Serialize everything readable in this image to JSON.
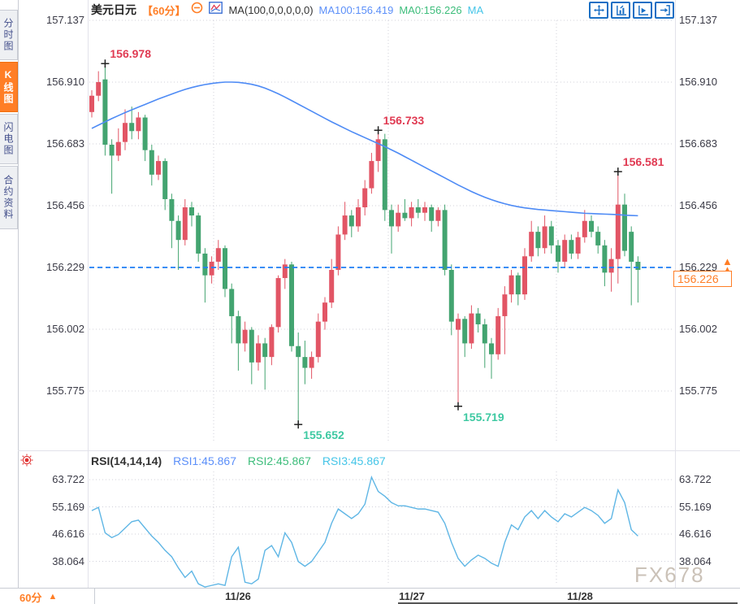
{
  "header": {
    "symbol": "美元日元",
    "timeframe": "【60分】",
    "ma_settings": "MA(100,0,0,0,0,0)",
    "ma100_label": "MA100:156.419",
    "ma0_label": "MA0:156.226",
    "ma_extra_label": "MA",
    "toolbar_icons": [
      "crosshair-move-icon",
      "chart-zoom-in-icon",
      "chart-play-icon",
      "exit-chart-icon"
    ]
  },
  "sidebar": {
    "tabs": [
      {
        "label": "分时图",
        "active": false
      },
      {
        "label": "K线图",
        "active": true
      },
      {
        "label": "闪电图",
        "active": false
      },
      {
        "label": "合约资料",
        "active": false
      }
    ]
  },
  "current_price": {
    "value": "156.226",
    "line_price": 156.229,
    "arrow": "▲"
  },
  "rsi_header": {
    "title": "RSI(14,14,14)",
    "rsi1": "RSI1:45.867",
    "rsi2": "RSI2:45.867",
    "rsi3": "RSI3:45.867"
  },
  "footer": {
    "timeframe_label": "60分",
    "arrow": "▲"
  },
  "watermark": "FX678",
  "colors": {
    "up": "#e25565",
    "down": "#43a470",
    "ma_line": "#4e8bf5",
    "dashed_line": "#1f7ff5",
    "rsi_line": "#5fb6e5",
    "accent": "#ff7e26",
    "high_text": "#e03a52",
    "low_text": "#3ec9a2",
    "grid": "#d0d0da",
    "icon_blue": "#1a6fc4",
    "sun_red": "#e03030"
  },
  "chart_data": {
    "type": "candlestick",
    "symbol": "美元日元",
    "interval": "60分",
    "price_axis_labels": [
      157.137,
      156.91,
      156.683,
      156.456,
      156.229,
      156.002,
      155.775
    ],
    "rsi_axis_labels": [
      63.722,
      55.169,
      46.616,
      38.064
    ],
    "x_axis_labels": [
      "11/26",
      "11/27",
      "11/28"
    ],
    "legend": {
      "ma100_value": 156.419,
      "ma0_value": 156.226,
      "rsi_values": [
        45.867,
        45.867,
        45.867
      ]
    },
    "candles": [
      [
        156.8,
        156.88,
        156.78,
        156.86
      ],
      [
        156.86,
        156.95,
        156.84,
        156.91
      ],
      [
        156.92,
        156.978,
        156.64,
        156.68
      ],
      [
        156.68,
        156.7,
        156.5,
        156.64
      ],
      [
        156.64,
        156.74,
        156.62,
        156.69
      ],
      [
        156.69,
        156.81,
        156.66,
        156.76
      ],
      [
        156.76,
        156.82,
        156.7,
        156.73
      ],
      [
        156.73,
        156.8,
        156.7,
        156.78
      ],
      [
        156.78,
        156.79,
        156.62,
        156.66
      ],
      [
        156.66,
        156.68,
        156.53,
        156.57
      ],
      [
        156.57,
        156.64,
        156.55,
        156.62
      ],
      [
        156.62,
        156.63,
        156.44,
        156.48
      ],
      [
        156.48,
        156.5,
        156.3,
        156.4
      ],
      [
        156.4,
        156.42,
        156.22,
        156.33
      ],
      [
        156.33,
        156.48,
        156.31,
        156.45
      ],
      [
        156.45,
        156.47,
        156.38,
        156.42
      ],
      [
        156.42,
        156.43,
        156.25,
        156.28
      ],
      [
        156.28,
        156.3,
        156.1,
        156.2
      ],
      [
        156.2,
        156.27,
        156.17,
        156.25
      ],
      [
        156.25,
        156.33,
        156.22,
        156.3
      ],
      [
        156.3,
        156.31,
        156.12,
        156.15
      ],
      [
        156.15,
        156.17,
        155.95,
        156.05
      ],
      [
        156.05,
        156.07,
        155.85,
        155.95
      ],
      [
        155.95,
        156.03,
        155.92,
        156.0
      ],
      [
        156.0,
        156.01,
        155.8,
        155.88
      ],
      [
        155.88,
        155.98,
        155.85,
        155.95
      ],
      [
        155.95,
        155.97,
        155.78,
        155.9
      ],
      [
        155.9,
        156.02,
        155.87,
        156.01
      ],
      [
        156.01,
        156.2,
        155.99,
        156.19
      ],
      [
        156.19,
        156.26,
        156.15,
        156.24
      ],
      [
        156.24,
        156.25,
        155.92,
        155.94
      ],
      [
        155.94,
        155.99,
        155.652,
        155.9
      ],
      [
        155.9,
        155.96,
        155.8,
        155.86
      ],
      [
        155.86,
        155.92,
        155.82,
        155.9
      ],
      [
        155.9,
        156.06,
        155.88,
        156.03
      ],
      [
        156.03,
        156.12,
        156.0,
        156.1
      ],
      [
        156.1,
        156.26,
        156.08,
        156.22
      ],
      [
        156.22,
        156.38,
        156.2,
        156.35
      ],
      [
        156.35,
        156.47,
        156.33,
        156.42
      ],
      [
        156.42,
        156.44,
        156.34,
        156.38
      ],
      [
        156.38,
        156.48,
        156.36,
        156.45
      ],
      [
        156.45,
        156.55,
        156.42,
        156.52
      ],
      [
        156.52,
        156.65,
        156.5,
        156.62
      ],
      [
        156.62,
        156.733,
        156.58,
        156.7
      ],
      [
        156.7,
        156.72,
        156.4,
        156.44
      ],
      [
        156.44,
        156.46,
        156.28,
        156.38
      ],
      [
        156.38,
        156.46,
        156.36,
        156.43
      ],
      [
        156.43,
        156.48,
        156.4,
        156.41
      ],
      [
        156.41,
        156.47,
        156.38,
        156.45
      ],
      [
        156.45,
        156.48,
        156.41,
        156.43
      ],
      [
        156.43,
        156.47,
        156.4,
        156.45
      ],
      [
        156.45,
        156.46,
        156.36,
        156.4
      ],
      [
        156.4,
        156.45,
        156.38,
        156.44
      ],
      [
        156.44,
        156.46,
        156.2,
        156.22
      ],
      [
        156.22,
        156.24,
        155.98,
        156.03
      ],
      [
        156.0,
        156.06,
        155.719,
        156.04
      ],
      [
        156.04,
        156.05,
        155.9,
        155.95
      ],
      [
        155.95,
        156.09,
        155.93,
        156.06
      ],
      [
        156.06,
        156.08,
        155.99,
        156.02
      ],
      [
        156.02,
        156.04,
        155.86,
        155.95
      ],
      [
        155.95,
        155.97,
        155.82,
        155.91
      ],
      [
        155.91,
        156.08,
        155.89,
        156.05
      ],
      [
        156.05,
        156.16,
        155.91,
        156.13
      ],
      [
        156.13,
        156.22,
        156.1,
        156.2
      ],
      [
        156.2,
        156.21,
        156.09,
        156.13
      ],
      [
        156.13,
        156.3,
        156.11,
        156.27
      ],
      [
        156.27,
        156.4,
        156.25,
        156.36
      ],
      [
        156.36,
        156.38,
        156.27,
        156.3
      ],
      [
        156.3,
        156.42,
        156.28,
        156.38
      ],
      [
        156.38,
        156.4,
        156.28,
        156.31
      ],
      [
        156.31,
        156.33,
        156.21,
        156.25
      ],
      [
        156.25,
        156.35,
        156.23,
        156.33
      ],
      [
        156.33,
        156.35,
        156.26,
        156.28
      ],
      [
        156.28,
        156.36,
        156.26,
        156.34
      ],
      [
        156.34,
        156.44,
        156.32,
        156.4
      ],
      [
        156.4,
        156.42,
        156.34,
        156.36
      ],
      [
        156.36,
        156.38,
        156.28,
        156.31
      ],
      [
        156.31,
        156.33,
        156.16,
        156.21
      ],
      [
        156.21,
        156.3,
        156.14,
        156.26
      ],
      [
        156.26,
        156.581,
        156.17,
        156.46
      ],
      [
        156.46,
        156.5,
        156.27,
        156.29
      ],
      [
        156.36,
        156.38,
        156.09,
        156.25
      ],
      [
        156.25,
        156.27,
        156.1,
        156.22
      ]
    ],
    "ma100": [
      156.74,
      156.752,
      156.764,
      156.776,
      156.787,
      156.798,
      156.808,
      156.818,
      156.828,
      156.838,
      156.848,
      156.857,
      156.866,
      156.875,
      156.883,
      156.89,
      156.896,
      156.901,
      156.905,
      156.908,
      156.91,
      156.91,
      156.909,
      156.906,
      156.902,
      156.896,
      156.888,
      156.878,
      156.867,
      156.855,
      156.842,
      156.829,
      156.816,
      156.803,
      156.79,
      156.777,
      156.764,
      156.752,
      156.74,
      156.728,
      156.717,
      156.706,
      156.695,
      156.684,
      156.673,
      156.661,
      156.649,
      156.636,
      156.623,
      156.61,
      156.597,
      156.584,
      156.571,
      156.558,
      156.545,
      156.532,
      156.52,
      156.508,
      156.497,
      156.487,
      156.478,
      156.47,
      156.463,
      156.457,
      156.452,
      156.448,
      156.445,
      156.442,
      156.44,
      156.438,
      156.436,
      156.434,
      156.432,
      156.43,
      156.428,
      156.427,
      156.426,
      156.425,
      156.424,
      156.423,
      156.421,
      156.42,
      156.419
    ],
    "rsi": [
      54,
      55,
      47,
      45.5,
      46.5,
      48.5,
      50.5,
      51,
      48.5,
      46,
      44,
      41.5,
      39.5,
      36,
      33,
      35,
      31,
      30,
      30.5,
      31,
      30.5,
      39.5,
      42.5,
      31.5,
      31,
      32.5,
      41.5,
      43,
      39.5,
      47,
      44,
      38,
      36.5,
      38,
      41,
      44,
      50,
      54.5,
      53,
      51.5,
      53,
      56,
      64.5,
      60,
      58.5,
      56.5,
      55.5,
      55.5,
      55,
      54.5,
      54.5,
      54,
      53.5,
      50,
      44,
      39,
      36.5,
      38.5,
      40,
      39,
      37.5,
      36.5,
      44,
      49.5,
      48,
      52,
      54,
      51.5,
      54,
      52,
      50.5,
      53,
      52,
      53.5,
      55,
      54,
      52.5,
      50,
      51.5,
      60.5,
      56.5,
      48,
      46
    ],
    "annotations": [
      {
        "index": 2,
        "label": "156.978",
        "type": "high"
      },
      {
        "index": 43,
        "label": "156.733",
        "type": "high"
      },
      {
        "index": 79,
        "label": "156.581",
        "type": "high"
      },
      {
        "index": 31,
        "label": "155.652",
        "type": "low"
      },
      {
        "index": 55,
        "label": "155.719",
        "type": "low"
      }
    ],
    "vertical_gridlines_x": [
      263,
      478,
      685
    ],
    "x_label_centers": [
      293,
      507,
      714
    ]
  }
}
